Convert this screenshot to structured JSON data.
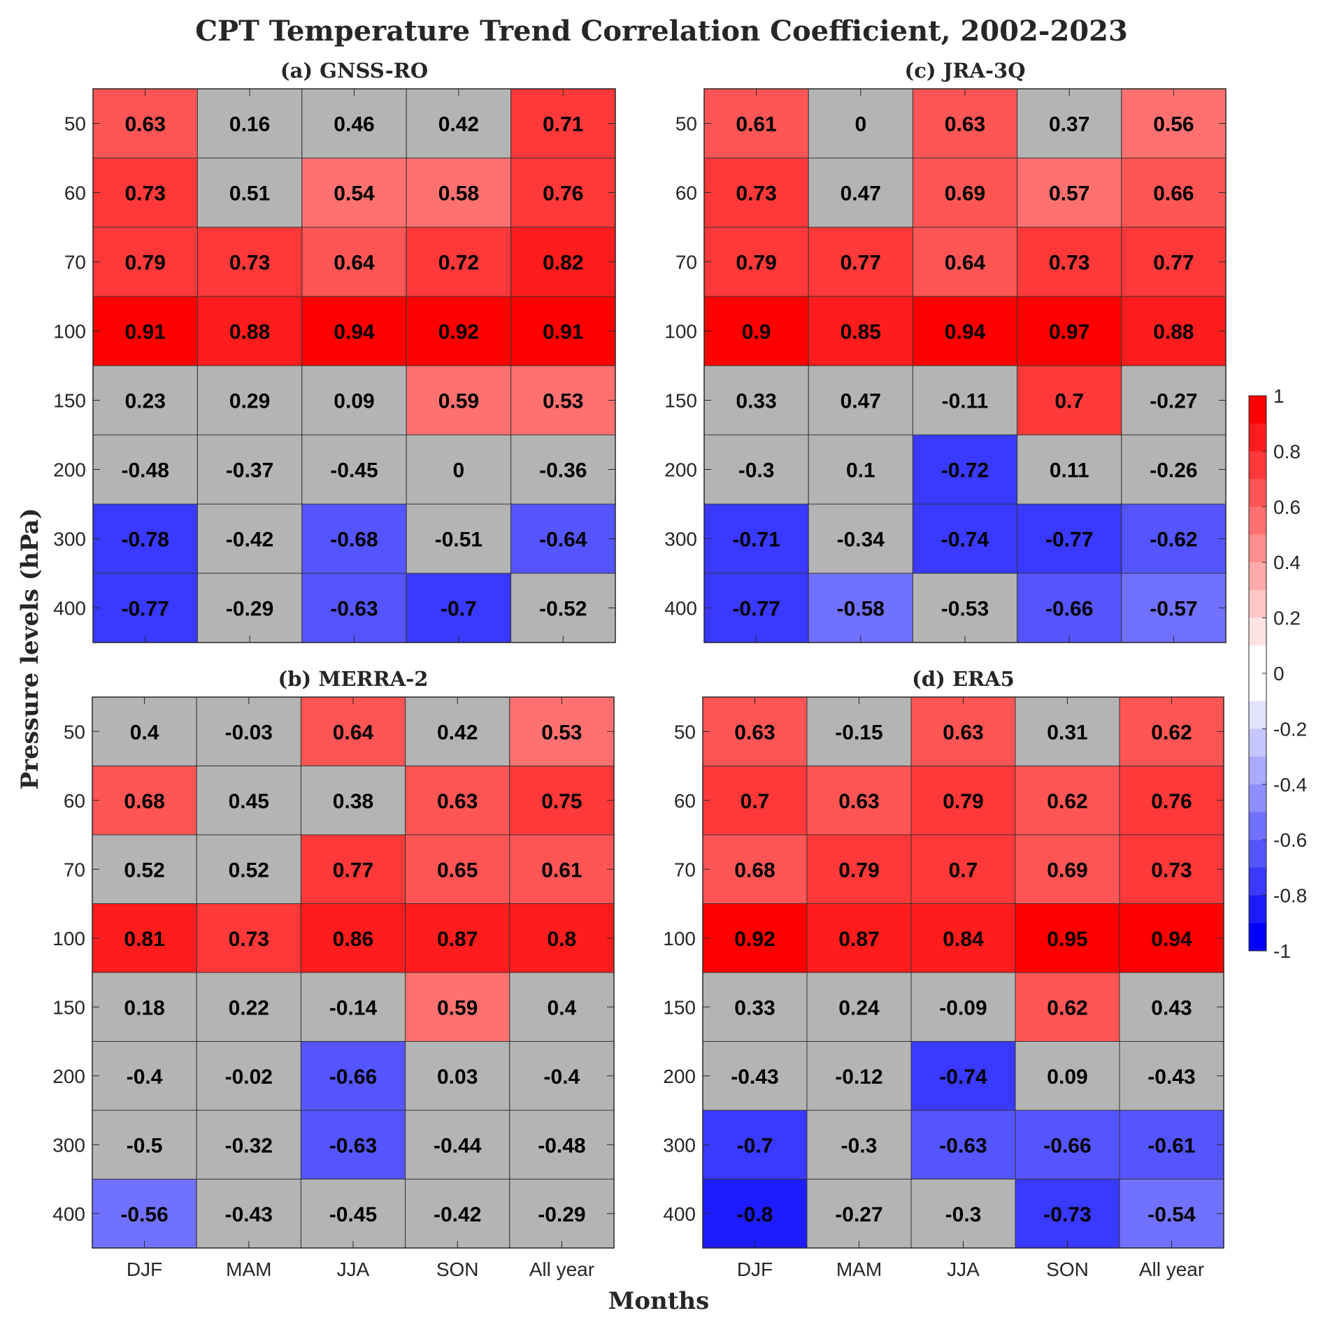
{
  "chart_data": {
    "type": "heatmap",
    "title": "CPT Temperature Trend Correlation Coefficient, 2002-2023",
    "xlabel": "Months",
    "ylabel": "Pressure levels (hPa)",
    "categories": [
      "DJF",
      "MAM",
      "JJA",
      "SON",
      "All year"
    ],
    "levels": [
      "50",
      "60",
      "70",
      "100",
      "150",
      "200",
      "300",
      "400"
    ],
    "colorbar": {
      "range": [
        -1,
        1
      ],
      "step": 0.1,
      "ticks": [
        "1",
        "0.8",
        "0.6",
        "0.4",
        "0.2",
        "0",
        "-0.2",
        "-0.4",
        "-0.6",
        "-0.8",
        "-1"
      ],
      "positive_color": "#ff0000",
      "negative_color": "#0000ff",
      "insignificant_color": "#b4b4b4"
    },
    "panels": [
      {
        "name": "(a) GNSS-RO",
        "position": "top-left",
        "values": [
          [
            0.63,
            0.16,
            0.46,
            0.42,
            0.71
          ],
          [
            0.73,
            0.51,
            0.54,
            0.58,
            0.76
          ],
          [
            0.79,
            0.73,
            0.64,
            0.72,
            0.82
          ],
          [
            0.91,
            0.88,
            0.94,
            0.92,
            0.91
          ],
          [
            0.23,
            0.29,
            0.09,
            0.59,
            0.53
          ],
          [
            -0.48,
            -0.37,
            -0.45,
            0,
            -0.36
          ],
          [
            -0.78,
            -0.42,
            -0.68,
            -0.51,
            -0.64
          ],
          [
            -0.77,
            -0.29,
            -0.63,
            -0.7,
            -0.52
          ]
        ],
        "significant": [
          [
            1,
            0,
            0,
            0,
            1
          ],
          [
            1,
            0,
            1,
            1,
            1
          ],
          [
            1,
            1,
            1,
            1,
            1
          ],
          [
            1,
            1,
            1,
            1,
            1
          ],
          [
            0,
            0,
            0,
            1,
            1
          ],
          [
            0,
            0,
            0,
            0,
            0
          ],
          [
            1,
            0,
            1,
            0,
            1
          ],
          [
            1,
            0,
            1,
            1,
            0
          ]
        ]
      },
      {
        "name": "(c) JRA-3Q",
        "position": "top-right",
        "values": [
          [
            0.61,
            0,
            0.63,
            0.37,
            0.56
          ],
          [
            0.73,
            0.47,
            0.69,
            0.57,
            0.66
          ],
          [
            0.79,
            0.77,
            0.64,
            0.73,
            0.77
          ],
          [
            0.9,
            0.85,
            0.94,
            0.97,
            0.88
          ],
          [
            0.33,
            0.47,
            -0.11,
            0.7,
            -0.27
          ],
          [
            -0.3,
            0.1,
            -0.72,
            0.11,
            -0.26
          ],
          [
            -0.71,
            -0.34,
            -0.74,
            -0.77,
            -0.62
          ],
          [
            -0.77,
            -0.58,
            -0.53,
            -0.66,
            -0.57
          ]
        ],
        "significant": [
          [
            1,
            0,
            1,
            0,
            1
          ],
          [
            1,
            0,
            1,
            1,
            1
          ],
          [
            1,
            1,
            1,
            1,
            1
          ],
          [
            1,
            1,
            1,
            1,
            1
          ],
          [
            0,
            0,
            0,
            1,
            0
          ],
          [
            0,
            0,
            1,
            0,
            0
          ],
          [
            1,
            0,
            1,
            1,
            1
          ],
          [
            1,
            1,
            0,
            1,
            1
          ]
        ]
      },
      {
        "name": "(b) MERRA-2",
        "position": "bottom-left",
        "values": [
          [
            0.4,
            -0.03,
            0.64,
            0.42,
            0.53
          ],
          [
            0.68,
            0.45,
            0.38,
            0.63,
            0.75
          ],
          [
            0.52,
            0.52,
            0.77,
            0.65,
            0.61
          ],
          [
            0.81,
            0.73,
            0.86,
            0.87,
            0.8
          ],
          [
            0.18,
            0.22,
            -0.14,
            0.59,
            0.4
          ],
          [
            -0.4,
            -0.02,
            -0.66,
            0.03,
            -0.4
          ],
          [
            -0.5,
            -0.32,
            -0.63,
            -0.44,
            -0.48
          ],
          [
            -0.56,
            -0.43,
            -0.45,
            -0.42,
            -0.29
          ]
        ],
        "significant": [
          [
            0,
            0,
            1,
            0,
            1
          ],
          [
            1,
            0,
            0,
            1,
            1
          ],
          [
            0,
            0,
            1,
            1,
            1
          ],
          [
            1,
            1,
            1,
            1,
            1
          ],
          [
            0,
            0,
            0,
            1,
            0
          ],
          [
            0,
            0,
            1,
            0,
            0
          ],
          [
            0,
            0,
            1,
            0,
            0
          ],
          [
            1,
            0,
            0,
            0,
            0
          ]
        ]
      },
      {
        "name": "(d) ERA5",
        "position": "bottom-right",
        "values": [
          [
            0.63,
            -0.15,
            0.63,
            0.31,
            0.62
          ],
          [
            0.7,
            0.63,
            0.79,
            0.62,
            0.76
          ],
          [
            0.68,
            0.79,
            0.7,
            0.69,
            0.73
          ],
          [
            0.92,
            0.87,
            0.84,
            0.95,
            0.94
          ],
          [
            0.33,
            0.24,
            -0.09,
            0.62,
            0.43
          ],
          [
            -0.43,
            -0.12,
            -0.74,
            0.09,
            -0.43
          ],
          [
            -0.7,
            -0.3,
            -0.63,
            -0.66,
            -0.61
          ],
          [
            -0.8,
            -0.27,
            -0.3,
            -0.73,
            -0.54
          ]
        ],
        "significant": [
          [
            1,
            0,
            1,
            0,
            1
          ],
          [
            1,
            1,
            1,
            1,
            1
          ],
          [
            1,
            1,
            1,
            1,
            1
          ],
          [
            1,
            1,
            1,
            1,
            1
          ],
          [
            0,
            0,
            0,
            1,
            0
          ],
          [
            0,
            0,
            1,
            0,
            0
          ],
          [
            1,
            0,
            1,
            1,
            1
          ],
          [
            1,
            0,
            0,
            1,
            1
          ]
        ]
      }
    ]
  }
}
